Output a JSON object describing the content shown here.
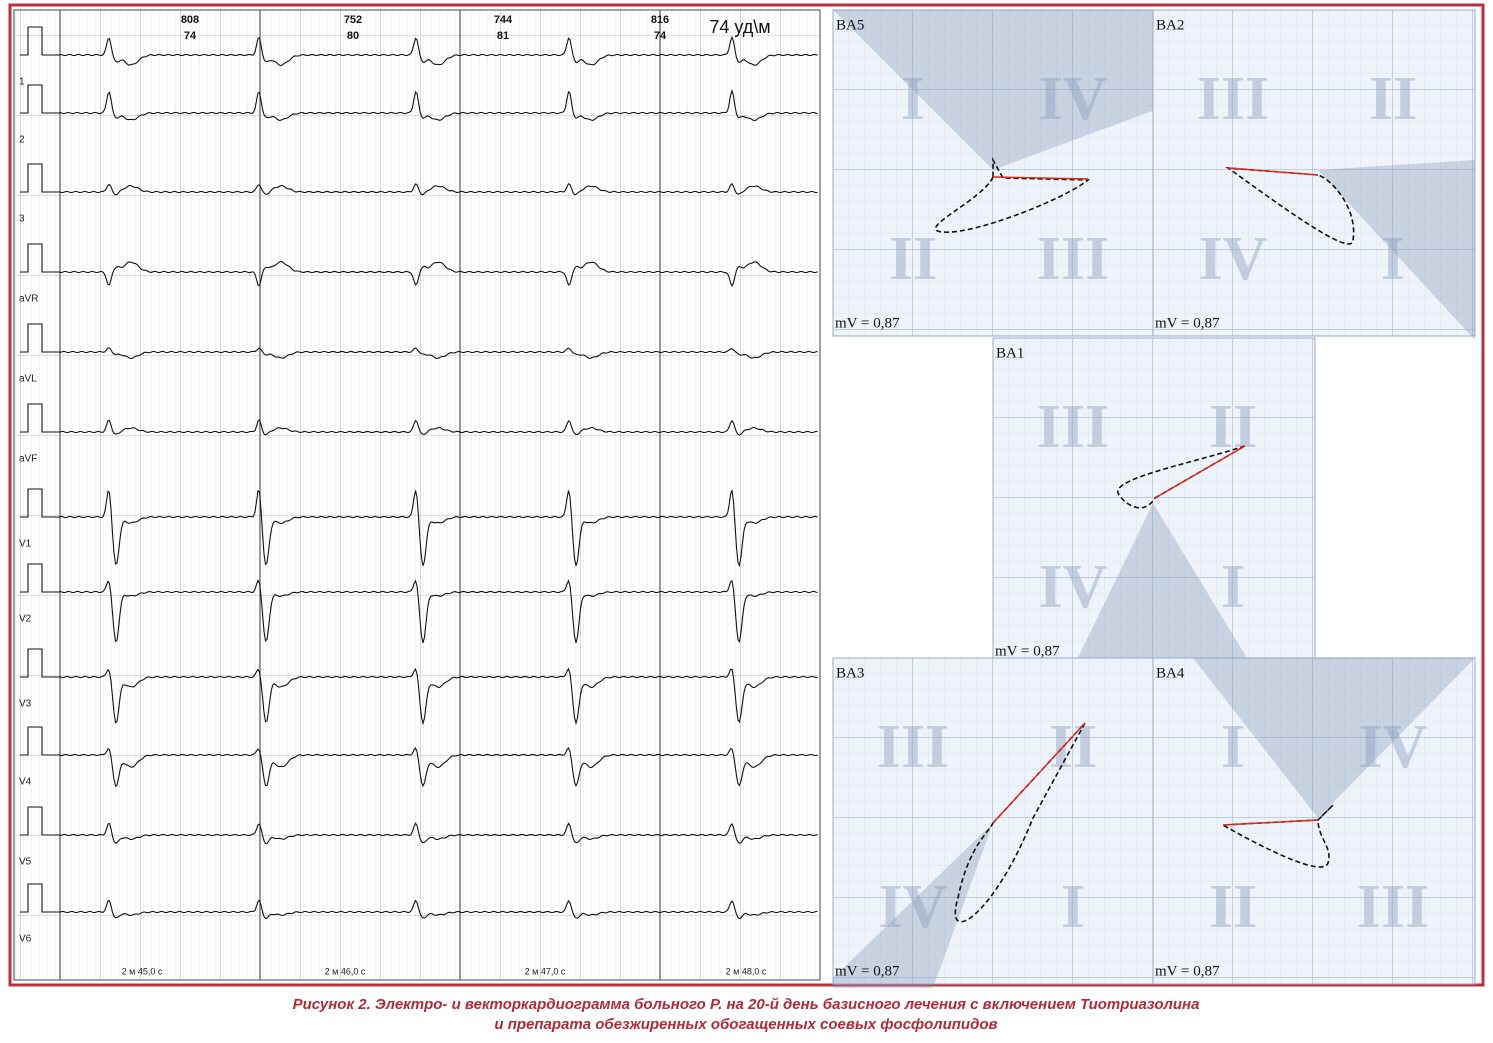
{
  "ecg": {
    "rr_labels": [
      {
        "interval": "808",
        "rate": "74"
      },
      {
        "interval": "752",
        "rate": "80"
      },
      {
        "interval": "744",
        "rate": "81"
      },
      {
        "interval": "816",
        "rate": "74"
      }
    ],
    "heart_rate": "74 уд\\м",
    "leads": [
      "1",
      "2",
      "3",
      "aVR",
      "aVL",
      "aVF",
      "V1",
      "V2",
      "V3",
      "V4",
      "V5",
      "V6"
    ],
    "time_labels": [
      "2 м 45,0 с",
      "2 м 46,0 с",
      "2 м 47,0 с",
      "2 м 48,0 с"
    ]
  },
  "vcg": {
    "panels": [
      {
        "title": "BA5",
        "quadrants": [
          "I",
          "IV",
          "II",
          "III"
        ],
        "scale": "mV = 0,87"
      },
      {
        "title": "BA2",
        "quadrants": [
          "III",
          "II",
          "IV",
          "I"
        ],
        "scale": "mV = 0,87"
      },
      {
        "title": "BA1",
        "quadrants": [
          "III",
          "II",
          "IV",
          "I"
        ],
        "scale": "mV = 0,87"
      },
      {
        "title": "BA3",
        "quadrants": [
          "III",
          "II",
          "IV",
          "I"
        ],
        "scale": "mV = 0,87"
      },
      {
        "title": "BA4",
        "quadrants": [
          "I",
          "IV",
          "II",
          "III"
        ],
        "scale": "mV = 0,87"
      }
    ]
  },
  "caption": {
    "lines": [
      "Рисунок 2. Электро- и векторкардиограмма больного Р. на 20-й день базисного лечения с включением Тиотриазолина",
      "и препарата обезжиренных обогащенных соевых фосфолипидов"
    ]
  }
}
